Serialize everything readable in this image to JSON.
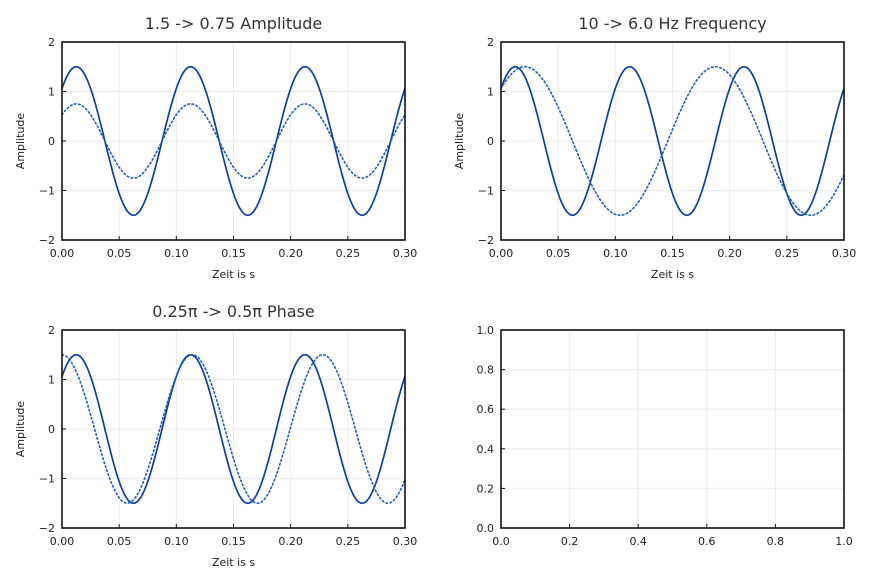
{
  "chart_data": [
    {
      "type": "line",
      "title": "1.5 -> 0.75 Amplitude",
      "xlabel": "Zeit is s",
      "ylabel": "Amplitude",
      "xlim": [
        0,
        0.3
      ],
      "ylim": [
        -2,
        2
      ],
      "xticks": [
        "0.00",
        "0.05",
        "0.10",
        "0.15",
        "0.20",
        "0.25",
        "0.30"
      ],
      "yticks": [
        "−2",
        "−1",
        "0",
        "1",
        "2"
      ],
      "grid": true,
      "series": [
        {
          "amplitude": 1.5,
          "frequency_hz": 10,
          "phase": "0.25π",
          "style": "solid",
          "color": "#0a3fa6"
        },
        {
          "amplitude": 0.75,
          "frequency_hz": 10,
          "phase": "0.25π",
          "style": "dotted",
          "color": "#1f5fc0"
        }
      ]
    },
    {
      "type": "line",
      "title": "10 -> 6.0 Hz Frequency",
      "xlabel": "Zeit is s",
      "ylabel": "Amplitude",
      "xlim": [
        0,
        0.3
      ],
      "ylim": [
        -2,
        2
      ],
      "xticks": [
        "0.00",
        "0.05",
        "0.10",
        "0.15",
        "0.20",
        "0.25",
        "0.30"
      ],
      "yticks": [
        "−2",
        "−1",
        "0",
        "1",
        "2"
      ],
      "grid": true,
      "series": [
        {
          "amplitude": 1.5,
          "frequency_hz": 10,
          "phase": "0.25π",
          "style": "solid",
          "color": "#0a3fa6"
        },
        {
          "amplitude": 1.5,
          "frequency_hz": 6,
          "phase": "0.25π",
          "style": "dotted",
          "color": "#1f5fc0"
        }
      ]
    },
    {
      "type": "line",
      "title": "0.25π -> 0.5π Phase",
      "xlabel": "Zeit is s",
      "ylabel": "Amplitude",
      "xlim": [
        0,
        0.3
      ],
      "ylim": [
        -2,
        2
      ],
      "xticks": [
        "0.00",
        "0.05",
        "0.10",
        "0.15",
        "0.20",
        "0.25",
        "0.30"
      ],
      "yticks": [
        "−2",
        "−1",
        "0",
        "1",
        "2"
      ],
      "grid": true,
      "series": [
        {
          "amplitude": 1.5,
          "frequency_hz": 10,
          "phase": "0.25π",
          "style": "solid",
          "color": "#0a3fa6"
        },
        {
          "amplitude": 1.5,
          "frequency_hz": 8.77,
          "phase": "0.5π",
          "style": "dotted",
          "color": "#1f5fc0"
        }
      ]
    },
    {
      "type": "line",
      "title": "",
      "xlabel": "",
      "ylabel": "",
      "xlim": [
        0,
        1
      ],
      "ylim": [
        0,
        1
      ],
      "xticks": [
        "0.0",
        "0.2",
        "0.4",
        "0.6",
        "0.8",
        "1.0"
      ],
      "yticks": [
        "0.0",
        "0.2",
        "0.4",
        "0.6",
        "0.8",
        "1.0"
      ],
      "grid": true,
      "series": []
    }
  ]
}
